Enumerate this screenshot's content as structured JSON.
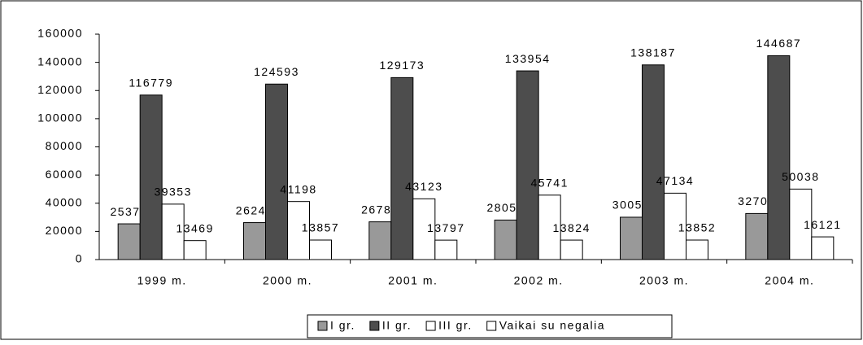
{
  "chart_data": {
    "type": "bar",
    "categories": [
      "1999 m.",
      "2000 m.",
      "2001 m.",
      "2002 m.",
      "2003 m.",
      "2004 m."
    ],
    "series": [
      {
        "name": "I gr.",
        "color": "#999999",
        "values": [
          25377,
          26242,
          26788,
          28058,
          30057,
          32702
        ]
      },
      {
        "name": "II gr.",
        "color": "#4d4d4d",
        "values": [
          116779,
          124593,
          129173,
          133954,
          138187,
          144687
        ]
      },
      {
        "name": "III gr.",
        "color": "#ffffff",
        "values": [
          39353,
          41198,
          43123,
          45741,
          47134,
          50038
        ]
      },
      {
        "name": "Vaikai su negalia",
        "color": "#ffffff",
        "values": [
          13469,
          13857,
          13797,
          13824,
          13852,
          16121
        ]
      }
    ],
    "ylim": [
      0,
      160000
    ],
    "yticks": [
      0,
      20000,
      40000,
      60000,
      80000,
      100000,
      120000,
      140000,
      160000
    ],
    "legend": "bottom",
    "grid": false
  }
}
